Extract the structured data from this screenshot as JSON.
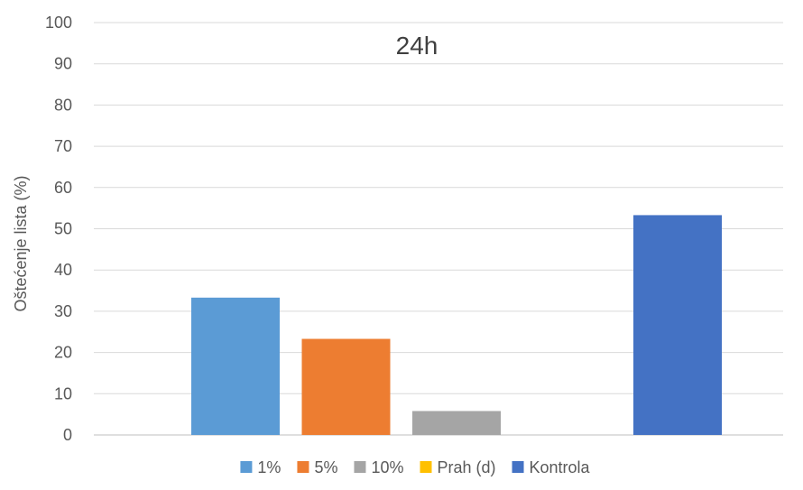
{
  "chart_data": {
    "type": "bar",
    "title": "24h",
    "xlabel": "",
    "ylabel": "Oštećenje lista (%)",
    "ylim": [
      0,
      100
    ],
    "yticks": [
      0,
      10,
      20,
      30,
      40,
      50,
      60,
      70,
      80,
      90,
      100
    ],
    "categories": [
      ""
    ],
    "series": [
      {
        "name": "1%",
        "color": "#5B9BD5",
        "values": [
          33.3
        ]
      },
      {
        "name": "5%",
        "color": "#ED7D31",
        "values": [
          23.3
        ]
      },
      {
        "name": "10%",
        "color": "#A5A5A5",
        "values": [
          5.8
        ]
      },
      {
        "name": "Prah (d)",
        "color": "#FFC000",
        "values": [
          0
        ]
      },
      {
        "name": "Kontrola",
        "color": "#4472C4",
        "values": [
          53.3
        ]
      }
    ],
    "grid": true,
    "legend_position": "bottom"
  }
}
